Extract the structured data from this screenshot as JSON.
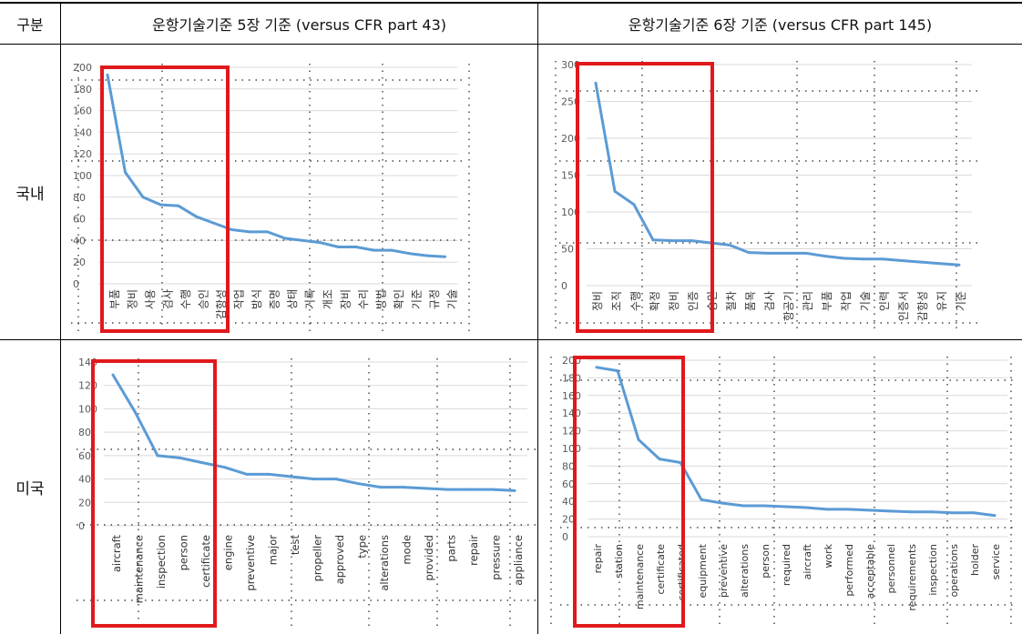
{
  "table": {
    "corner": "구분",
    "col1": "운항기술기준 5장 기준 (versus CFR part 43)",
    "col2": "운항기술기준 6장 기준 (versus CFR part 145)",
    "row1": "국내",
    "row2": "미국"
  },
  "colors": {
    "line": "#5B9BD5",
    "box": "#E0191C",
    "grid": "#222222",
    "hgrid": "#D9D9D9",
    "tick": "#595959"
  },
  "chart_data": [
    {
      "type": "line",
      "categories": [
        "부품",
        "정비",
        "사용",
        "검사",
        "수행",
        "승인",
        "감항성",
        "작업",
        "방식",
        "증명",
        "상태",
        "기록",
        "개조",
        "장비",
        "수리",
        "방법",
        "확인",
        "기준",
        "규정",
        "기술"
      ],
      "values": [
        193,
        103,
        80,
        73,
        72,
        62,
        56,
        50,
        48,
        48,
        42,
        40,
        38,
        34,
        34,
        31,
        31,
        28,
        26,
        25
      ],
      "ylim": [
        0,
        200
      ],
      "yticks": [
        0,
        20,
        40,
        60,
        80,
        100,
        120,
        140,
        160,
        180,
        200
      ],
      "highlight_count": 6
    },
    {
      "type": "line",
      "categories": [
        "정비",
        "조직",
        "수행",
        "확정",
        "정비",
        "인증",
        "승인",
        "절차",
        "품목",
        "검사",
        "항공기",
        "관리",
        "부품",
        "작업",
        "기술",
        "인력",
        "인증서",
        "감항성",
        "유지",
        "기준"
      ],
      "values": [
        275,
        128,
        110,
        62,
        61,
        61,
        58,
        55,
        45,
        44,
        44,
        44,
        40,
        37,
        36,
        36,
        34,
        32,
        30,
        28
      ],
      "ylim": [
        0,
        300
      ],
      "yticks": [
        0,
        50,
        100,
        150,
        200,
        250,
        300
      ],
      "highlight_count": 6
    },
    {
      "type": "line",
      "categories": [
        "aircraft",
        "maintenance",
        "inspection",
        "person",
        "certificate",
        "engine",
        "preventive",
        "major",
        "test",
        "propeller",
        "approved",
        "type",
        "alterations",
        "mode",
        "provided",
        "parts",
        "repair",
        "pressure",
        "appliance"
      ],
      "values": [
        129,
        97,
        60,
        58,
        54,
        50,
        44,
        44,
        42,
        40,
        40,
        36,
        33,
        33,
        32,
        31,
        31,
        31,
        30
      ],
      "ylim": [
        0,
        140
      ],
      "yticks": [
        0,
        20,
        40,
        60,
        80,
        100,
        120,
        140
      ],
      "highlight_count": 5
    },
    {
      "type": "line",
      "categories": [
        "repair",
        "station",
        "maintenance",
        "certificate",
        "certificated",
        "equipment",
        "preventive",
        "alterations",
        "person",
        "required",
        "aircraft",
        "work",
        "performed",
        "acceptable",
        "personnel",
        "requirements",
        "inspection",
        "operations",
        "holder",
        "service"
      ],
      "values": [
        192,
        188,
        110,
        88,
        84,
        42,
        38,
        35,
        35,
        34,
        33,
        31,
        31,
        30,
        29,
        28,
        28,
        27,
        27,
        24
      ],
      "ylim": [
        0,
        200
      ],
      "yticks": [
        0,
        20,
        40,
        60,
        80,
        100,
        120,
        140,
        160,
        180,
        200
      ],
      "highlight_count": 6
    }
  ]
}
